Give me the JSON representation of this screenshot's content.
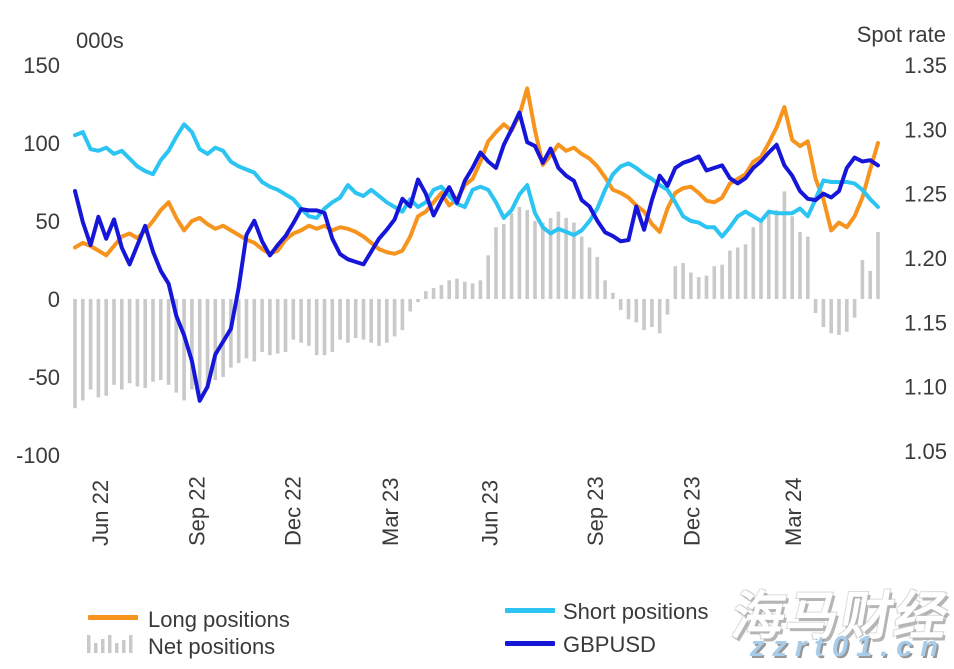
{
  "chart_data": {
    "type": "line+bar combo (dual axis)",
    "left_axis_title": "000s",
    "right_axis_title": "Spot rate",
    "left_axis_ticks": [
      {
        "label": "150",
        "value": 150
      },
      {
        "label": "100",
        "value": 100
      },
      {
        "label": "50",
        "value": 50
      },
      {
        "label": "0",
        "value": 0
      },
      {
        "label": "-50",
        "value": -50
      },
      {
        "label": "-100",
        "value": -100
      }
    ],
    "right_axis_ticks": [
      {
        "label": "1.35",
        "value": 1.35
      },
      {
        "label": "1.30",
        "value": 1.3
      },
      {
        "label": "1.25",
        "value": 1.25
      },
      {
        "label": "1.20",
        "value": 1.2
      },
      {
        "label": "1.15",
        "value": 1.15
      },
      {
        "label": "1.10",
        "value": 1.1
      },
      {
        "label": "1.05",
        "value": 1.05
      }
    ],
    "left_ylim": [
      -100,
      150
    ],
    "right_ylim": [
      1.05,
      1.35
    ],
    "grid": "off",
    "legend_position": "bottom",
    "x_ticks": [
      {
        "label": "Jun 22",
        "week_index": 3.2
      },
      {
        "label": "Sep 22",
        "week_index": 15.6
      },
      {
        "label": "Dec 22",
        "week_index": 27.9
      },
      {
        "label": "Mar 23",
        "week_index": 40.4
      },
      {
        "label": "Jun 23",
        "week_index": 53.2
      },
      {
        "label": "Sep 23",
        "week_index": 66.7
      },
      {
        "label": "Dec 23",
        "week_index": 79.1
      },
      {
        "label": "Mar 24",
        "week_index": 92.1
      }
    ],
    "x_unit": "weekly observations, Jun 2022 - May 2024",
    "series": [
      {
        "name": "Net positions",
        "type": "bar",
        "axis": "left",
        "color": "#c9c9c9",
        "values": [
          -70,
          -65,
          -58,
          -63,
          -62,
          -55,
          -58,
          -54,
          -56,
          -57,
          -53,
          -52,
          -55,
          -60,
          -65,
          -58,
          -65,
          -58,
          -52,
          -50,
          -44,
          -41,
          -38,
          -40,
          -34,
          -36,
          -35,
          -34,
          -26,
          -28,
          -30,
          -36,
          -36,
          -34,
          -26,
          -28,
          -25,
          -26,
          -28,
          -30,
          -28,
          -24,
          -20,
          -8,
          -2,
          5,
          7,
          9,
          12,
          13,
          11,
          10,
          12,
          28,
          46,
          48,
          55,
          59,
          57,
          50,
          49,
          52,
          56,
          52,
          49,
          40,
          33,
          27,
          12,
          4,
          -7,
          -13,
          -15,
          -20,
          -18,
          -22,
          -10,
          21,
          23,
          17,
          14,
          15,
          21,
          22,
          31,
          33,
          35,
          46,
          49,
          56,
          57,
          69,
          53,
          43,
          40,
          -9,
          -18,
          -22,
          -23,
          -21,
          -12,
          25,
          18,
          43
        ]
      },
      {
        "name": "Long positions",
        "type": "line",
        "axis": "left",
        "color": "#f7941e",
        "values": [
          33,
          36,
          34,
          31,
          28,
          34,
          40,
          42,
          39,
          44,
          50,
          57,
          62,
          52,
          44,
          50,
          52,
          48,
          45,
          47,
          44,
          41,
          38,
          36,
          32,
          29,
          31,
          38,
          42,
          44,
          47,
          45,
          47,
          44,
          46,
          45,
          43,
          40,
          36,
          32,
          30,
          29,
          31,
          40,
          53,
          56,
          62,
          68,
          60,
          64,
          73,
          77,
          88,
          101,
          107,
          112,
          108,
          118,
          135,
          108,
          86,
          92,
          99,
          95,
          97,
          93,
          90,
          85,
          78,
          70,
          68,
          65,
          60,
          56,
          48,
          43,
          58,
          68,
          71,
          72,
          68,
          63,
          62,
          65,
          74,
          77,
          80,
          88,
          91,
          100,
          110,
          123,
          102,
          98,
          101,
          77,
          64,
          44,
          49,
          46,
          53,
          65,
          83,
          100
        ]
      },
      {
        "name": "Short positions",
        "type": "line",
        "axis": "left",
        "color": "#2bc4f3",
        "values": [
          105,
          107,
          96,
          95,
          97,
          93,
          95,
          90,
          85,
          82,
          80,
          89,
          95,
          104,
          112,
          107,
          96,
          93,
          97,
          95,
          88,
          85,
          83,
          81,
          75,
          72,
          70,
          67,
          64,
          58,
          53,
          52,
          58,
          62,
          65,
          73,
          68,
          66,
          70,
          66,
          62,
          59,
          56,
          64,
          59,
          62,
          70,
          72,
          66,
          61,
          59,
          70,
          72,
          70,
          62,
          52,
          57,
          67,
          73,
          55,
          46,
          42,
          45,
          43,
          41,
          44,
          50,
          58,
          70,
          80,
          85,
          87,
          84,
          80,
          77,
          73,
          70,
          62,
          53,
          50,
          49,
          46,
          46,
          40,
          46,
          53,
          56,
          53,
          50,
          56,
          55,
          55,
          55,
          58,
          53,
          64,
          76,
          75,
          75,
          75,
          74,
          70,
          64,
          59
        ]
      },
      {
        "name": "GBPUSD",
        "type": "line",
        "axis": "right",
        "color": "#1616d9",
        "values": [
          1.252,
          1.228,
          1.21,
          1.232,
          1.215,
          1.23,
          1.208,
          1.195,
          1.21,
          1.225,
          1.205,
          1.19,
          1.18,
          1.155,
          1.14,
          1.12,
          1.089,
          1.1,
          1.125,
          1.135,
          1.145,
          1.177,
          1.218,
          1.229,
          1.213,
          1.202,
          1.21,
          1.217,
          1.227,
          1.238,
          1.237,
          1.237,
          1.235,
          1.215,
          1.203,
          1.199,
          1.197,
          1.195,
          1.205,
          1.215,
          1.222,
          1.23,
          1.246,
          1.24,
          1.261,
          1.25,
          1.233,
          1.245,
          1.255,
          1.243,
          1.26,
          1.27,
          1.282,
          1.275,
          1.27,
          1.288,
          1.3,
          1.313,
          1.29,
          1.287,
          1.274,
          1.285,
          1.27,
          1.264,
          1.26,
          1.245,
          1.24,
          1.229,
          1.22,
          1.217,
          1.213,
          1.214,
          1.24,
          1.222,
          1.245,
          1.264,
          1.256,
          1.27,
          1.274,
          1.276,
          1.279,
          1.268,
          1.27,
          1.272,
          1.262,
          1.258,
          1.262,
          1.27,
          1.275,
          1.282,
          1.288,
          1.272,
          1.264,
          1.252,
          1.246,
          1.245,
          1.25,
          1.247,
          1.252,
          1.27,
          1.278,
          1.275,
          1.276,
          1.272
        ]
      }
    ]
  },
  "legend": {
    "long_label": "Long positions",
    "net_label": "Net positions",
    "short_label": "Short positions",
    "gbpusd_label": "GBPUSD"
  },
  "watermark": {
    "brand": "海马财经",
    "site": "zzrt01.cn"
  },
  "colors": {
    "long": "#f7941e",
    "short": "#2bc4f3",
    "gbpusd": "#1616d9",
    "net": "#c9c9c9",
    "text": "#3b3b3b"
  }
}
